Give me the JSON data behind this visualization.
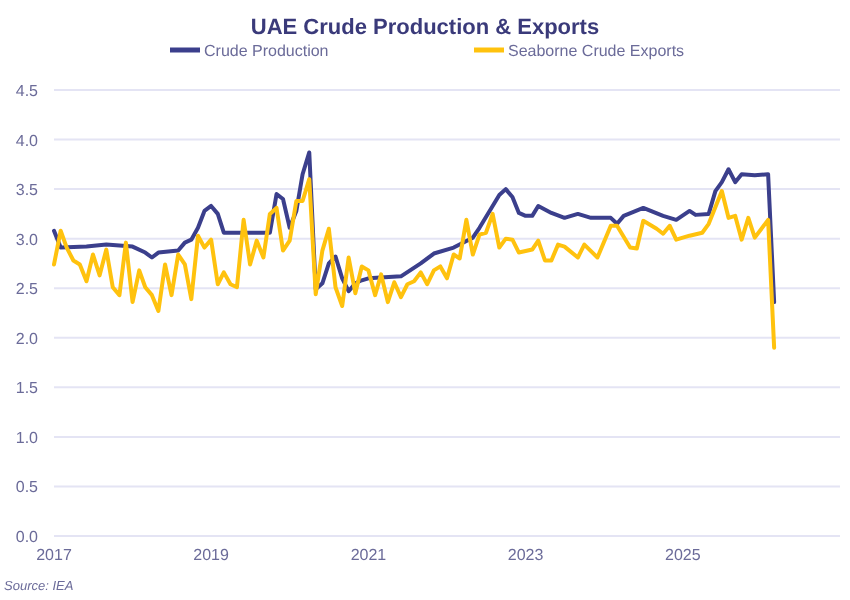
{
  "chart_data": {
    "type": "line",
    "title": "UAE Crude Production & Exports",
    "xlim": [
      "2017-01",
      "2027-01"
    ],
    "xticks": [
      "2017",
      "2019",
      "2021",
      "2023",
      "2025"
    ],
    "ylim": [
      0,
      4.5
    ],
    "yticks": [
      {
        "value": 0,
        "label": "0.0"
      },
      0.5,
      {
        "value": 1,
        "label": "1.0"
      },
      1.5,
      {
        "value": 2,
        "label": "2.0"
      },
      2.5,
      {
        "value": 3,
        "label": "3.0"
      },
      3.5,
      {
        "value": 4,
        "label": "4.0"
      },
      4.5
    ],
    "grid": "y",
    "legend": "top",
    "line_style": "solid",
    "marker": "none",
    "annotations": [
      "Source: IEA"
    ],
    "series": [
      {
        "name": "Crude Production",
        "color": "#3b3f8c",
        "x": [
          "2017-01",
          "2017-02",
          "2017-06",
          "2017-09",
          "2018-01",
          "2018-03",
          "2018-04",
          "2018-05",
          "2018-08",
          "2018-09",
          "2018-10",
          "2018-11",
          "2018-12",
          "2019-01",
          "2019-02",
          "2019-03",
          "2019-10",
          "2019-11",
          "2019-12",
          "2020-01",
          "2020-02",
          "2020-03",
          "2020-04",
          "2020-05",
          "2020-06",
          "2020-07",
          "2020-08",
          "2020-09",
          "2020-10",
          "2020-11",
          "2020-12",
          "2021-01",
          "2021-06",
          "2021-09",
          "2021-11",
          "2022-02",
          "2022-05",
          "2022-06",
          "2022-09",
          "2022-10",
          "2022-11",
          "2022-12",
          "2023-01",
          "2023-02",
          "2023-03",
          "2023-05",
          "2023-07",
          "2023-09",
          "2023-11",
          "2024-02",
          "2024-03",
          "2024-04",
          "2024-07",
          "2024-10",
          "2024-12",
          "2025-02",
          "2025-03",
          "2025-05",
          "2025-06",
          "2025-07",
          "2025-08",
          "2025-09",
          "2025-10",
          "2025-12",
          "2026-02",
          "2026-03"
        ],
        "values": [
          3.08,
          2.91,
          2.92,
          2.94,
          2.92,
          2.86,
          2.81,
          2.86,
          2.88,
          2.96,
          2.99,
          3.11,
          3.28,
          3.33,
          3.25,
          3.06,
          3.06,
          3.45,
          3.4,
          3.11,
          3.28,
          3.65,
          3.87,
          2.49,
          2.55,
          2.75,
          2.82,
          2.6,
          2.47,
          2.55,
          2.58,
          2.6,
          2.62,
          2.75,
          2.85,
          2.91,
          3.01,
          3.11,
          3.44,
          3.5,
          3.42,
          3.26,
          3.23,
          3.23,
          3.33,
          3.26,
          3.21,
          3.25,
          3.21,
          3.21,
          3.15,
          3.23,
          3.31,
          3.23,
          3.19,
          3.28,
          3.24,
          3.25,
          3.48,
          3.57,
          3.7,
          3.57,
          3.65,
          3.64,
          3.65,
          2.36
        ]
      },
      {
        "name": "Seaborne Crude Exports",
        "color": "#ffc20e",
        "x": [
          "2017-01",
          "2017-02",
          "2017-03",
          "2017-04",
          "2017-05",
          "2017-06",
          "2017-07",
          "2017-08",
          "2017-09",
          "2017-10",
          "2017-11",
          "2017-12",
          "2018-01",
          "2018-02",
          "2018-03",
          "2018-04",
          "2018-05",
          "2018-06",
          "2018-07",
          "2018-08",
          "2018-09",
          "2018-10",
          "2018-11",
          "2018-12",
          "2019-01",
          "2019-02",
          "2019-03",
          "2019-04",
          "2019-05",
          "2019-06",
          "2019-07",
          "2019-08",
          "2019-09",
          "2019-10",
          "2019-11",
          "2019-12",
          "2020-01",
          "2020-02",
          "2020-03",
          "2020-04",
          "2020-05",
          "2020-06",
          "2020-07",
          "2020-08",
          "2020-09",
          "2020-10",
          "2020-11",
          "2020-12",
          "2021-01",
          "2021-02",
          "2021-03",
          "2021-04",
          "2021-05",
          "2021-06",
          "2021-07",
          "2021-08",
          "2021-09",
          "2021-10",
          "2021-11",
          "2021-12",
          "2022-01",
          "2022-02",
          "2022-03",
          "2022-04",
          "2022-05",
          "2022-06",
          "2022-07",
          "2022-08",
          "2022-09",
          "2022-10",
          "2022-11",
          "2022-12",
          "2023-02",
          "2023-03",
          "2023-04",
          "2023-05",
          "2023-06",
          "2023-07",
          "2023-09",
          "2023-10",
          "2023-12",
          "2024-02",
          "2024-03",
          "2024-05",
          "2024-06",
          "2024-07",
          "2024-09",
          "2024-10",
          "2024-11",
          "2024-12",
          "2025-02",
          "2025-04",
          "2025-05",
          "2025-07",
          "2025-08",
          "2025-09",
          "2025-10",
          "2025-11",
          "2025-12",
          "2026-02",
          "2026-03"
        ],
        "values": [
          2.74,
          3.08,
          2.91,
          2.78,
          2.74,
          2.57,
          2.84,
          2.63,
          2.89,
          2.51,
          2.43,
          2.96,
          2.36,
          2.68,
          2.51,
          2.43,
          2.27,
          2.74,
          2.43,
          2.84,
          2.74,
          2.39,
          3.03,
          2.91,
          2.99,
          2.54,
          2.66,
          2.54,
          2.51,
          3.19,
          2.74,
          2.98,
          2.81,
          3.25,
          3.31,
          2.88,
          2.98,
          3.38,
          3.38,
          3.6,
          2.44,
          2.88,
          3.1,
          2.51,
          2.32,
          2.81,
          2.45,
          2.72,
          2.68,
          2.43,
          2.64,
          2.36,
          2.56,
          2.41,
          2.54,
          2.57,
          2.66,
          2.54,
          2.68,
          2.72,
          2.6,
          2.84,
          2.8,
          3.19,
          2.84,
          3.04,
          3.06,
          3.25,
          2.91,
          3.0,
          2.99,
          2.86,
          2.89,
          2.98,
          2.78,
          2.78,
          2.94,
          2.92,
          2.81,
          2.94,
          2.81,
          3.13,
          3.13,
          2.91,
          2.9,
          3.18,
          3.1,
          3.05,
          3.13,
          2.99,
          3.03,
          3.06,
          3.15,
          3.48,
          3.21,
          3.23,
          2.99,
          3.21,
          3.01,
          3.19,
          1.9
        ]
      }
    ]
  }
}
